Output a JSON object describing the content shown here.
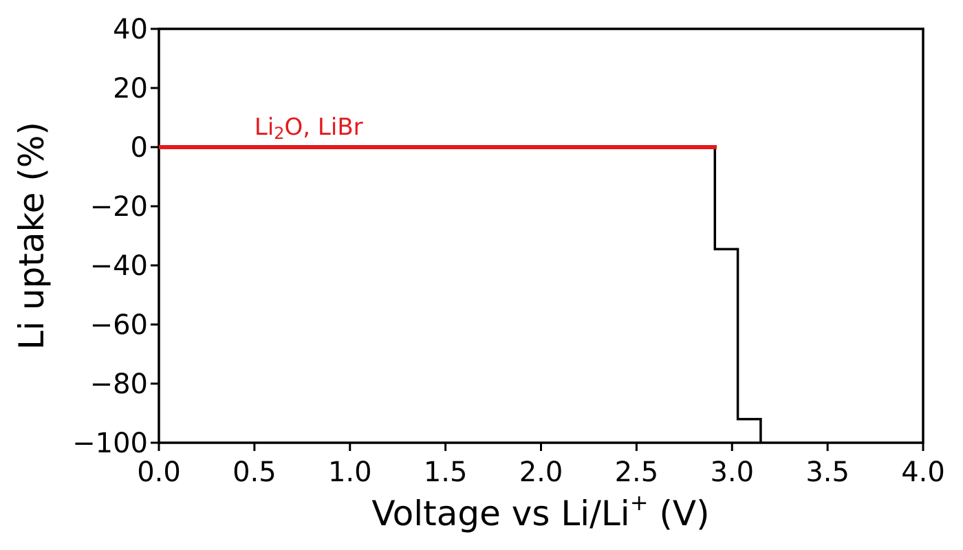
{
  "chart_data": {
    "type": "line",
    "title": "",
    "xlabel": "Voltage vs Li/Li",
    "xlabel_sup": "+",
    "xlabel_unit": "(V)",
    "ylabel": "Li uptake (%)",
    "xlim": [
      0.0,
      4.0
    ],
    "ylim": [
      -100,
      40
    ],
    "x_ticks": [
      0.0,
      0.5,
      1.0,
      1.5,
      2.0,
      2.5,
      3.0,
      3.5,
      4.0
    ],
    "x_tick_labels": [
      "0.0",
      "0.5",
      "1.0",
      "1.5",
      "2.0",
      "2.5",
      "3.0",
      "3.5",
      "4.0"
    ],
    "y_ticks": [
      40,
      20,
      0,
      -20,
      -40,
      -60,
      -80,
      -100
    ],
    "y_tick_labels": [
      "40",
      "20",
      "0",
      "−20",
      "−40",
      "−60",
      "−80",
      "−100"
    ],
    "grid": false,
    "series": [
      {
        "color": "#000000",
        "x": [
          2.91,
          2.91,
          3.03,
          3.03,
          3.15,
          3.15
        ],
        "y": [
          0,
          -34.5,
          -34.5,
          -92,
          -92,
          -100
        ]
      },
      {
        "color": "#e31a1c",
        "x": [
          0.0,
          2.92
        ],
        "y": [
          0,
          0
        ]
      }
    ],
    "annotations": [
      {
        "text_main": "Li",
        "text_sub": "2",
        "text_rest": "O, LiBr",
        "x": 0.5,
        "y": 7,
        "color": "#e31a1c"
      }
    ]
  }
}
